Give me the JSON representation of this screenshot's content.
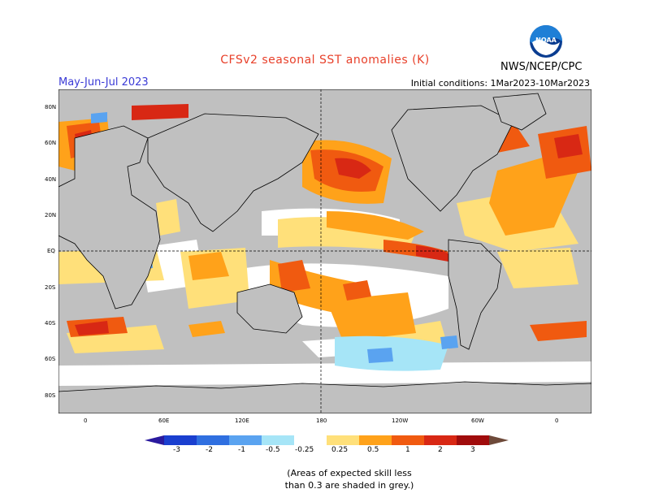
{
  "title": "CFSv2 seasonal SST anomalies (K)",
  "season": "May-Jun-Jul 2023",
  "initial_conditions": "Initial conditions: 1Mar2023-10Mar2023",
  "agency": "NWS/NCEP/CPC",
  "logo_text": "NOAA",
  "lat_labels": [
    "80N",
    "60N",
    "40N",
    "20N",
    "EQ",
    "20S",
    "40S",
    "60S",
    "80S"
  ],
  "lon_labels": [
    "0",
    "60E",
    "120E",
    "180",
    "120W",
    "60W",
    "0"
  ],
  "colorbar_labels": [
    "-3",
    "-2",
    "-1",
    "-0.5",
    "-0.25",
    "0.25",
    "0.5",
    "1",
    "2",
    "3"
  ],
  "colors": {
    "ocean_grey": "#c0c0c0",
    "land_grey": "#c0c0c0",
    "white_neutral": "#ffffff",
    "cb_m4": "#2a1a9e",
    "cb_m3": "#1a3fcf",
    "cb_m2": "#2f6fe0",
    "cb_m1": "#5aa3f0",
    "cb_m05": "#a6e5f7",
    "cb_0": "#ffffff",
    "cb_p05": "#ffe07a",
    "cb_p1": "#ffa21a",
    "cb_p2": "#f05a10",
    "cb_p3": "#d82814",
    "cb_p4": "#a00c0c",
    "cb_p5": "#6e4a3a"
  },
  "note_line1": "(Areas of expected skill less",
  "note_line2": "than 0.3 are shaded in grey.)"
}
